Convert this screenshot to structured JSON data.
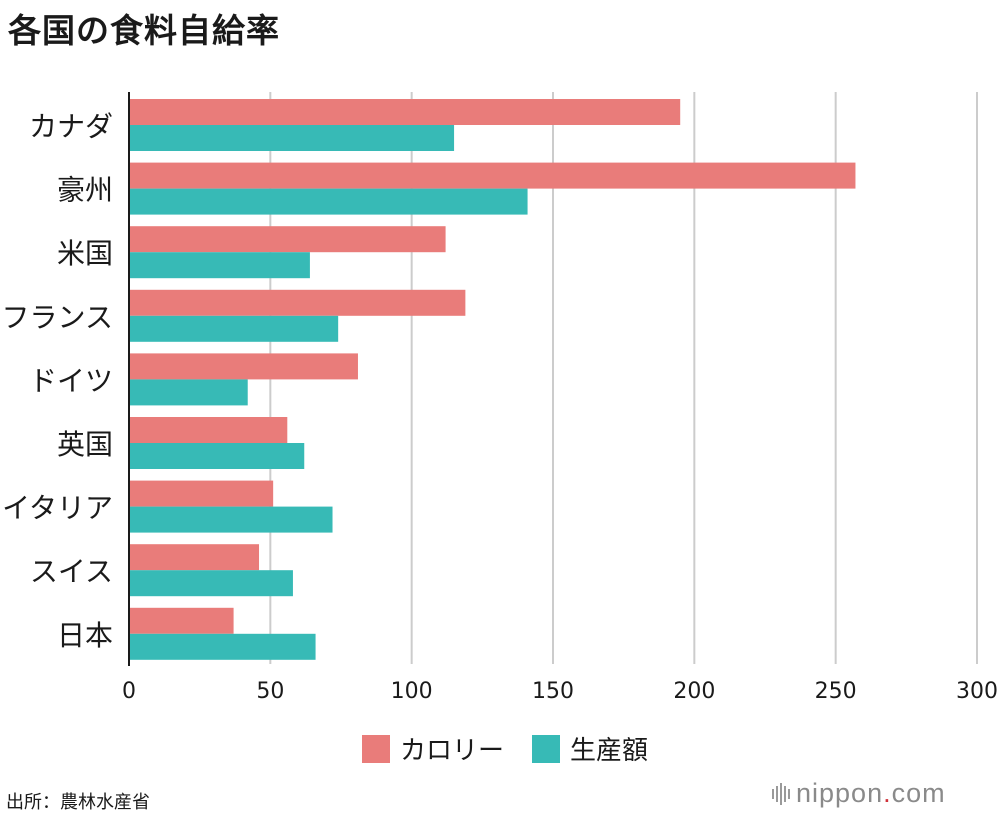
{
  "title": "各国の食料自給率",
  "source": "出所：農林水産省",
  "logo": {
    "name": "nippon",
    "dot": ".",
    "suffix": "com"
  },
  "colors": {
    "calorie": "#e97c7a",
    "production": "#37bab6",
    "grid": "#cccccc"
  },
  "chart_data": {
    "type": "bar",
    "orientation": "horizontal",
    "categories": [
      "カナダ",
      "豪州",
      "米国",
      "フランス",
      "ドイツ",
      "英国",
      "イタリア",
      "スイス",
      "日本"
    ],
    "series": [
      {
        "name": "カロリー",
        "values": [
          195,
          257,
          112,
          119,
          81,
          56,
          51,
          46,
          37
        ]
      },
      {
        "name": "生産額",
        "values": [
          115,
          141,
          64,
          74,
          42,
          62,
          72,
          58,
          66
        ]
      }
    ],
    "xlim": [
      0,
      300
    ],
    "xticks": [
      0,
      50,
      100,
      150,
      200,
      250,
      300
    ],
    "grid": true,
    "legend": "bottom"
  }
}
